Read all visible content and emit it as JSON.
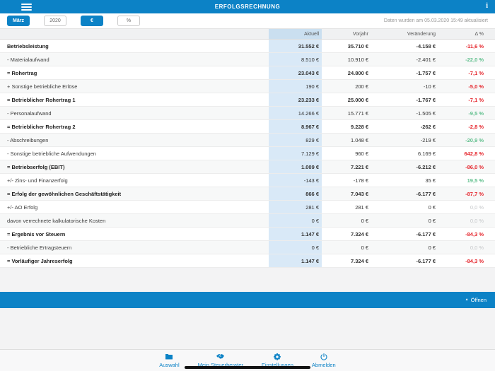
{
  "colors": {
    "accent": "#0c82c6",
    "negative_red": "#e5242b",
    "positive_green": "#5fbf8c",
    "neutral_gray": "#c5c7c9"
  },
  "header": {
    "title": "ERFOLGSRECHNUNG",
    "info_label": "i"
  },
  "filter_bar": {
    "buttons": [
      {
        "name": "month-filter-button",
        "label": "März",
        "active": true
      },
      {
        "name": "year-filter-button",
        "label": "2020",
        "active": false
      },
      {
        "name": "currency-filter-button",
        "label": "€",
        "active": true
      },
      {
        "name": "percent-filter-button",
        "label": "%",
        "active": false
      }
    ],
    "updated_text": "Daten wurden am 05.03.2020 15:49 aktualisiert"
  },
  "table": {
    "columns": [
      "",
      "Aktuell",
      "Vorjahr",
      "Veränderung",
      "Δ %"
    ],
    "rows": [
      {
        "label": "Betriebsleistung",
        "aktuell": "31.552 €",
        "vorjahr": "35.710 €",
        "veraenderung": "-4.158 €",
        "delta": "-11,6 %",
        "bold": true,
        "delta_color": "red"
      },
      {
        "label": "- Materialaufwand",
        "aktuell": "8.510 €",
        "vorjahr": "10.910 €",
        "veraenderung": "-2.401 €",
        "delta": "-22,0 %",
        "bold": false,
        "delta_color": "green"
      },
      {
        "label": "= Rohertrag",
        "aktuell": "23.043 €",
        "vorjahr": "24.800 €",
        "veraenderung": "-1.757 €",
        "delta": "-7,1 %",
        "bold": true,
        "delta_color": "red"
      },
      {
        "label": "+ Sonstige betriebliche Erlöse",
        "aktuell": "190 €",
        "vorjahr": "200 €",
        "veraenderung": "-10 €",
        "delta": "-5,0 %",
        "bold": false,
        "delta_color": "red"
      },
      {
        "label": "= Betrieblicher Rohertrag 1",
        "aktuell": "23.233 €",
        "vorjahr": "25.000 €",
        "veraenderung": "-1.767 €",
        "delta": "-7,1 %",
        "bold": true,
        "delta_color": "red"
      },
      {
        "label": "- Personalaufwand",
        "aktuell": "14.266 €",
        "vorjahr": "15.771 €",
        "veraenderung": "-1.505 €",
        "delta": "-9,5 %",
        "bold": false,
        "delta_color": "green"
      },
      {
        "label": "= Betrieblicher Rohertrag 2",
        "aktuell": "8.967 €",
        "vorjahr": "9.228 €",
        "veraenderung": "-262 €",
        "delta": "-2,8 %",
        "bold": true,
        "delta_color": "red"
      },
      {
        "label": "- Abschreibungen",
        "aktuell": "829 €",
        "vorjahr": "1.048 €",
        "veraenderung": "-219 €",
        "delta": "-20,9 %",
        "bold": false,
        "delta_color": "green"
      },
      {
        "label": "- Sonstige betriebliche Aufwendungen",
        "aktuell": "7.129 €",
        "vorjahr": "960 €",
        "veraenderung": "6.169 €",
        "delta": "642,8 %",
        "bold": false,
        "delta_color": "red"
      },
      {
        "label": "= Betriebserfolg (EBIT)",
        "aktuell": "1.009 €",
        "vorjahr": "7.221 €",
        "veraenderung": "-6.212 €",
        "delta": "-86,0 %",
        "bold": true,
        "delta_color": "red"
      },
      {
        "label": "+/- Zins- und Finanzerfolg",
        "aktuell": "-143 €",
        "vorjahr": "-178 €",
        "veraenderung": "35 €",
        "delta": "19,5 %",
        "bold": false,
        "delta_color": "green"
      },
      {
        "label": "= Erfolg der gewöhnlichen Geschäftstätigkeit",
        "aktuell": "866 €",
        "vorjahr": "7.043 €",
        "veraenderung": "-6.177 €",
        "delta": "-87,7 %",
        "bold": true,
        "delta_color": "red"
      },
      {
        "label": "+/- AO Erfolg",
        "aktuell": "281 €",
        "vorjahr": "281 €",
        "veraenderung": "0 €",
        "delta": "0,0 %",
        "bold": false,
        "delta_color": "gray"
      },
      {
        "label": "davon verrechnete kalkulatorische Kosten",
        "aktuell": "0 €",
        "vorjahr": "0 €",
        "veraenderung": "0 €",
        "delta": "0,0 %",
        "bold": false,
        "delta_color": "gray"
      },
      {
        "label": "= Ergebnis vor Steuern",
        "aktuell": "1.147 €",
        "vorjahr": "7.324 €",
        "veraenderung": "-6.177 €",
        "delta": "-84,3 %",
        "bold": true,
        "delta_color": "red"
      },
      {
        "label": "- Betriebliche Ertragsteuern",
        "aktuell": "0 €",
        "vorjahr": "0 €",
        "veraenderung": "0 €",
        "delta": "0,0 %",
        "bold": false,
        "delta_color": "gray"
      },
      {
        "label": "= Vorläufiger Jahreserfolg",
        "aktuell": "1.147 €",
        "vorjahr": "7.324 €",
        "veraenderung": "-6.177 €",
        "delta": "-84,3 %",
        "bold": true,
        "delta_color": "red"
      }
    ]
  },
  "drawer": {
    "open_label": "Öffnen",
    "caret": "▲"
  },
  "bottom_nav": {
    "items": [
      {
        "id": "auswahl",
        "label": "Auswahl",
        "icon": "folder-icon"
      },
      {
        "id": "mein-steuerberater",
        "label": "Mein Steuerberater",
        "icon": "handshake-icon"
      },
      {
        "id": "einstellungen",
        "label": "Einstellungen",
        "icon": "gear-icon"
      },
      {
        "id": "abmelden",
        "label": "Abmelden",
        "icon": "power-icon"
      }
    ]
  }
}
